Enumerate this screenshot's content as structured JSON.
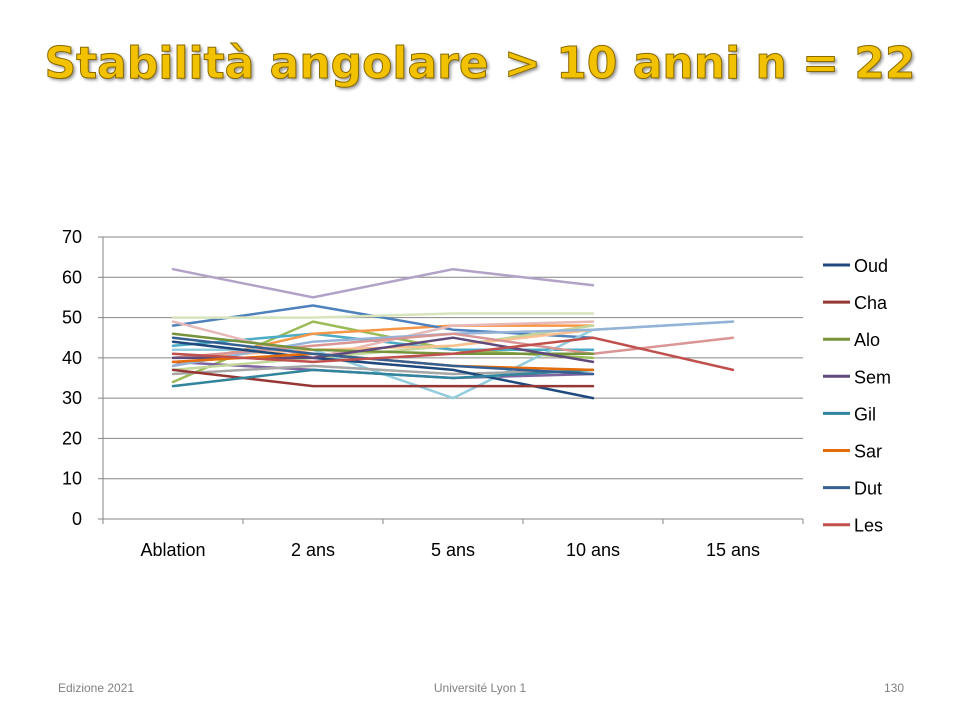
{
  "slide": {
    "title": "Stabilità angolare > 10 anni n = 22",
    "footer_left": "Edizione 2021",
    "footer_center": "Université Lyon 1",
    "page_number": "130"
  },
  "chart_data": {
    "type": "line",
    "categories": [
      "Ablation",
      "2 ans",
      "5 ans",
      "10 ans",
      "15 ans"
    ],
    "ylim": [
      0,
      70
    ],
    "yticks": [
      0,
      10,
      20,
      30,
      40,
      50,
      60,
      70
    ],
    "grid": true,
    "legend_position": "right",
    "series": [
      {
        "name": "Oud",
        "color": "#1f497d",
        "values": [
          44,
          40,
          37,
          30,
          null
        ]
      },
      {
        "name": "Cha",
        "color": "#953735",
        "values": [
          37,
          33,
          33,
          33,
          null
        ]
      },
      {
        "name": "Alo",
        "color": "#77933c",
        "values": [
          46,
          42,
          41,
          41,
          null
        ]
      },
      {
        "name": "Sem",
        "color": "#604a7b",
        "values": [
          40,
          40,
          45,
          39,
          null
        ]
      },
      {
        "name": "Gil",
        "color": "#31859c",
        "values": [
          33,
          37,
          35,
          37,
          null
        ]
      },
      {
        "name": "Sar",
        "color": "#e46c0a",
        "values": [
          39,
          41,
          38,
          37,
          null
        ]
      },
      {
        "name": "Dut",
        "color": "#376092",
        "values": [
          45,
          41,
          38,
          36,
          null
        ]
      },
      {
        "name": "Les",
        "color": "#c0504d",
        "values": [
          41,
          39,
          41,
          45,
          37
        ]
      },
      {
        "color": "#9bbb59",
        "values": [
          34,
          49,
          42,
          40,
          null
        ]
      },
      {
        "color": "#8064a2",
        "values": [
          39,
          37,
          35,
          36,
          null
        ]
      },
      {
        "color": "#4bacc6",
        "values": [
          43,
          46,
          42,
          42,
          null
        ]
      },
      {
        "color": "#f79646",
        "values": [
          38,
          46,
          48,
          48,
          null
        ]
      },
      {
        "color": "#4f81bd",
        "values": [
          48,
          53,
          47,
          45,
          null
        ]
      },
      {
        "color": "#b3a2c7",
        "values": [
          62,
          55,
          62,
          58,
          null
        ]
      },
      {
        "color": "#d7e4bd",
        "values": [
          50,
          50,
          51,
          51,
          null
        ]
      },
      {
        "color": "#93cddd",
        "values": [
          42,
          42,
          30,
          47,
          49
        ]
      },
      {
        "color": "#e6b9b8",
        "values": [
          49,
          40,
          48,
          49,
          null
        ]
      },
      {
        "color": "#c3d69b",
        "values": [
          37,
          40,
          43,
          48,
          null
        ]
      },
      {
        "color": "#fac090",
        "values": [
          40,
          42,
          43,
          47,
          null
        ]
      },
      {
        "color": "#95b3d7",
        "values": [
          38,
          44,
          46,
          47,
          49
        ]
      },
      {
        "color": "#d99694",
        "values": [
          40,
          43,
          46,
          41,
          45
        ]
      },
      {
        "color": "#a6a6a6",
        "values": [
          36,
          38,
          36,
          37,
          null
        ]
      }
    ]
  }
}
